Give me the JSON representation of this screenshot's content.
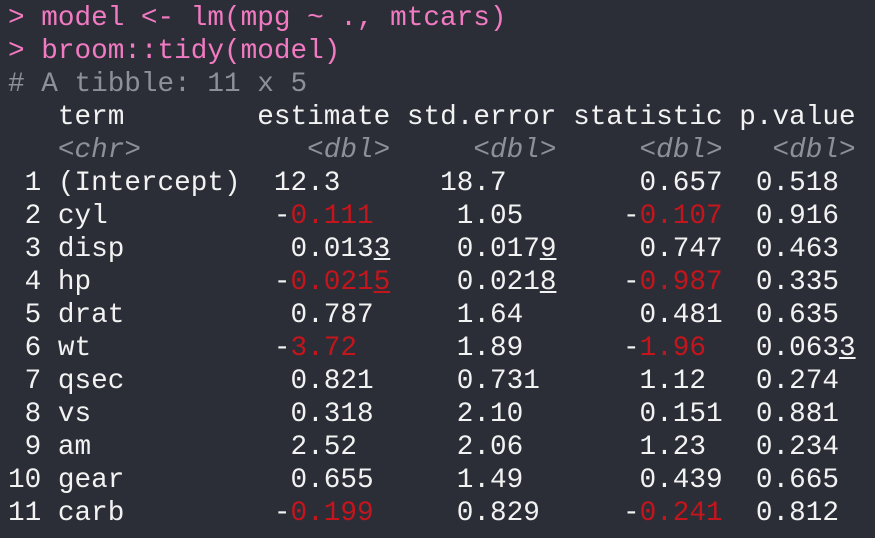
{
  "console": {
    "commands": [
      "> model <- lm(mpg ~ ., mtcars)",
      "> broom::tidy(model)"
    ],
    "description": "# A tibble: 11 x 5",
    "columns": [
      {
        "name": "term",
        "type": "<chr>"
      },
      {
        "name": "estimate",
        "type": "<dbl>"
      },
      {
        "name": "std.error",
        "type": "<dbl>"
      },
      {
        "name": "statistic",
        "type": "<dbl>"
      },
      {
        "name": "p.value",
        "type": "<dbl>"
      }
    ],
    "rows": [
      [
        "1",
        "(Intercept)",
        "12.3",
        "18.7",
        "0.657",
        "0.518"
      ],
      [
        "2",
        "cyl",
        "-0.111",
        "1.05",
        "-0.107",
        "0.916"
      ],
      [
        "3",
        "disp",
        "0.0133",
        "0.0179",
        "0.747",
        "0.463"
      ],
      [
        "4",
        "hp",
        "-0.0215",
        "0.0218",
        "-0.987",
        "0.335"
      ],
      [
        "5",
        "drat",
        "0.787",
        "1.64",
        "0.481",
        "0.635"
      ],
      [
        "6",
        "wt",
        "-3.72",
        "1.89",
        "-1.96",
        "0.0633"
      ],
      [
        "7",
        "qsec",
        "0.821",
        "0.731",
        "1.12",
        "0.274"
      ],
      [
        "8",
        "vs",
        "0.318",
        "2.10",
        "0.151",
        "0.881"
      ],
      [
        "9",
        "am",
        "2.52",
        "2.06",
        "1.23",
        "0.234"
      ],
      [
        "10",
        "gear",
        "0.655",
        "1.49",
        "0.439",
        "0.665"
      ],
      [
        "11",
        "carb",
        "-0.199",
        "0.829",
        "-0.241",
        "0.812"
      ]
    ]
  }
}
